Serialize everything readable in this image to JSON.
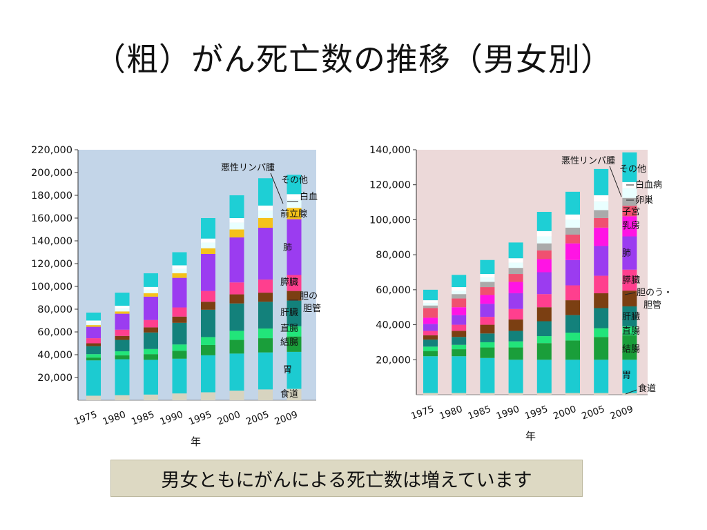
{
  "slide": {
    "title": "（粗）がん死亡数の推移（男女別）",
    "caption": "男女ともにがんによる死亡数は増えています"
  },
  "colors": {
    "male_background": "#c3d5e8",
    "female_background": "#ecd9d9",
    "食道": "#d7d4c0",
    "胃": "#1ccbd1",
    "結腸": "#1a9e3a",
    "直腸": "#22e57a",
    "肝臓": "#13817b",
    "胆のう・胆管": "#7b3f12",
    "膵臓": "#ff3f8e",
    "肺": "#9b3cf0",
    "乳房": "#ff14e4",
    "子宮": "#f05070",
    "卵巣": "#aaaaaa",
    "前立腺": "#f5c21a",
    "悪性リンパ腫": "#e9ffff",
    "白血病": "#ffffff",
    "その他": "#1ecfd5"
  },
  "chart_data": [
    {
      "type": "bar",
      "stacked": true,
      "panel": "male",
      "categories": [
        "1975",
        "1980",
        "1985",
        "1990",
        "1995",
        "2000",
        "2005",
        "2009"
      ],
      "xlabel": "年",
      "ylim": [
        0,
        220000
      ],
      "yticks": [
        "20,000",
        "40,000",
        "60,000",
        "80,000",
        "100,000",
        "120,000",
        "140,000",
        "160,000",
        "180,000",
        "200,000",
        "220,000"
      ],
      "grid": false,
      "series": [
        {
          "name": "食道",
          "values": [
            4000,
            4500,
            5000,
            6000,
            7000,
            8500,
            9500,
            10000
          ]
        },
        {
          "name": "胃",
          "values": [
            31000,
            31500,
            30500,
            30500,
            32500,
            32500,
            32500,
            32500
          ]
        },
        {
          "name": "結腸",
          "values": [
            2500,
            3500,
            5000,
            7000,
            9000,
            12000,
            12500,
            13500
          ]
        },
        {
          "name": "直腸",
          "values": [
            3000,
            3500,
            4500,
            5500,
            7000,
            8000,
            8500,
            9000
          ]
        },
        {
          "name": "肝臓",
          "values": [
            7000,
            10000,
            14500,
            19000,
            24000,
            24000,
            23500,
            22500
          ]
        },
        {
          "name": "胆のう・胆管",
          "values": [
            2500,
            3500,
            4500,
            5500,
            7000,
            8000,
            8000,
            8500
          ]
        },
        {
          "name": "膵臓",
          "values": [
            4500,
            5500,
            6500,
            8000,
            9500,
            10500,
            11500,
            14000
          ]
        },
        {
          "name": "肺",
          "values": [
            10000,
            14000,
            20500,
            26000,
            32500,
            39500,
            45500,
            49000
          ]
        },
        {
          "name": "前立腺",
          "values": [
            1500,
            2000,
            3000,
            4000,
            5000,
            7000,
            8500,
            10000
          ]
        },
        {
          "name": "悪性リンパ腫",
          "values": [
            2000,
            2500,
            3000,
            4000,
            5000,
            6000,
            6500,
            7000
          ]
        },
        {
          "name": "白血病",
          "values": [
            2000,
            2500,
            2500,
            3000,
            3500,
            4000,
            4500,
            5000
          ]
        },
        {
          "name": "その他",
          "values": [
            7000,
            11500,
            12000,
            11500,
            18000,
            20000,
            24000,
            17000
          ]
        }
      ],
      "legend_labels": [
        "悪性リンパ腫",
        "その他",
        "白血",
        "前立腺",
        "肺",
        "膵臓",
        "胆の",
        "胆管",
        "肝臓",
        "直腸",
        "結腸",
        "胃",
        "食道"
      ]
    },
    {
      "type": "bar",
      "stacked": true,
      "panel": "female",
      "categories": [
        "1975",
        "1980",
        "1985",
        "1990",
        "1995",
        "2000",
        "2005",
        "2009"
      ],
      "xlabel": "年",
      "ylim": [
        0,
        140000
      ],
      "yticks": [
        "20,000",
        "40,000",
        "60,000",
        "80,000",
        "100,000",
        "120,000",
        "140,000"
      ],
      "grid": false,
      "series": [
        {
          "name": "食道",
          "values": [
            1000,
            1000,
            1000,
            1000,
            1000,
            1000,
            1000,
            1000
          ]
        },
        {
          "name": "胃",
          "values": [
            21000,
            21000,
            20000,
            19000,
            19000,
            19000,
            19000,
            19000
          ]
        },
        {
          "name": "結腸",
          "values": [
            3000,
            4000,
            6000,
            7000,
            9500,
            11000,
            13000,
            14000
          ]
        },
        {
          "name": "直腸",
          "values": [
            2500,
            2500,
            3000,
            3500,
            4000,
            4500,
            5000,
            5000
          ]
        },
        {
          "name": "肝臓",
          "values": [
            4000,
            4500,
            5000,
            6000,
            8500,
            10000,
            11500,
            11500
          ]
        },
        {
          "name": "胆のう・胆管",
          "values": [
            2500,
            3500,
            5000,
            6500,
            8000,
            8500,
            8500,
            9000
          ]
        },
        {
          "name": "膵臓",
          "values": [
            2500,
            3500,
            4500,
            6000,
            7500,
            8500,
            10000,
            12000
          ]
        },
        {
          "name": "肺",
          "values": [
            4000,
            5500,
            7500,
            9000,
            12500,
            14500,
            17000,
            19000
          ]
        },
        {
          "name": "乳房",
          "values": [
            3500,
            4500,
            5000,
            6500,
            7500,
            9500,
            10500,
            11500
          ]
        },
        {
          "name": "子宮",
          "values": [
            5500,
            5000,
            4500,
            4500,
            5000,
            5000,
            5500,
            6000
          ]
        },
        {
          "name": "卵巣",
          "values": [
            1500,
            2500,
            3000,
            3500,
            4000,
            4000,
            4500,
            4500
          ]
        },
        {
          "name": "悪性リンパ腫",
          "values": [
            1500,
            2000,
            2500,
            3000,
            4000,
            4500,
            5000,
            5500
          ]
        },
        {
          "name": "白血病",
          "values": [
            1500,
            2000,
            2000,
            2500,
            3000,
            3000,
            3500,
            3500
          ]
        },
        {
          "name": "その他",
          "values": [
            6000,
            7000,
            8000,
            9000,
            11000,
            13000,
            15000,
            17000
          ]
        }
      ],
      "legend_labels": [
        "悪性リンパ腫",
        "その他",
        "白血病",
        "卵巣",
        "子宮",
        "乳房",
        "肺",
        "膵臓",
        "胆のう・",
        "胆管",
        "肝臓",
        "直腸",
        "結腸",
        "胃",
        "食道"
      ]
    }
  ]
}
